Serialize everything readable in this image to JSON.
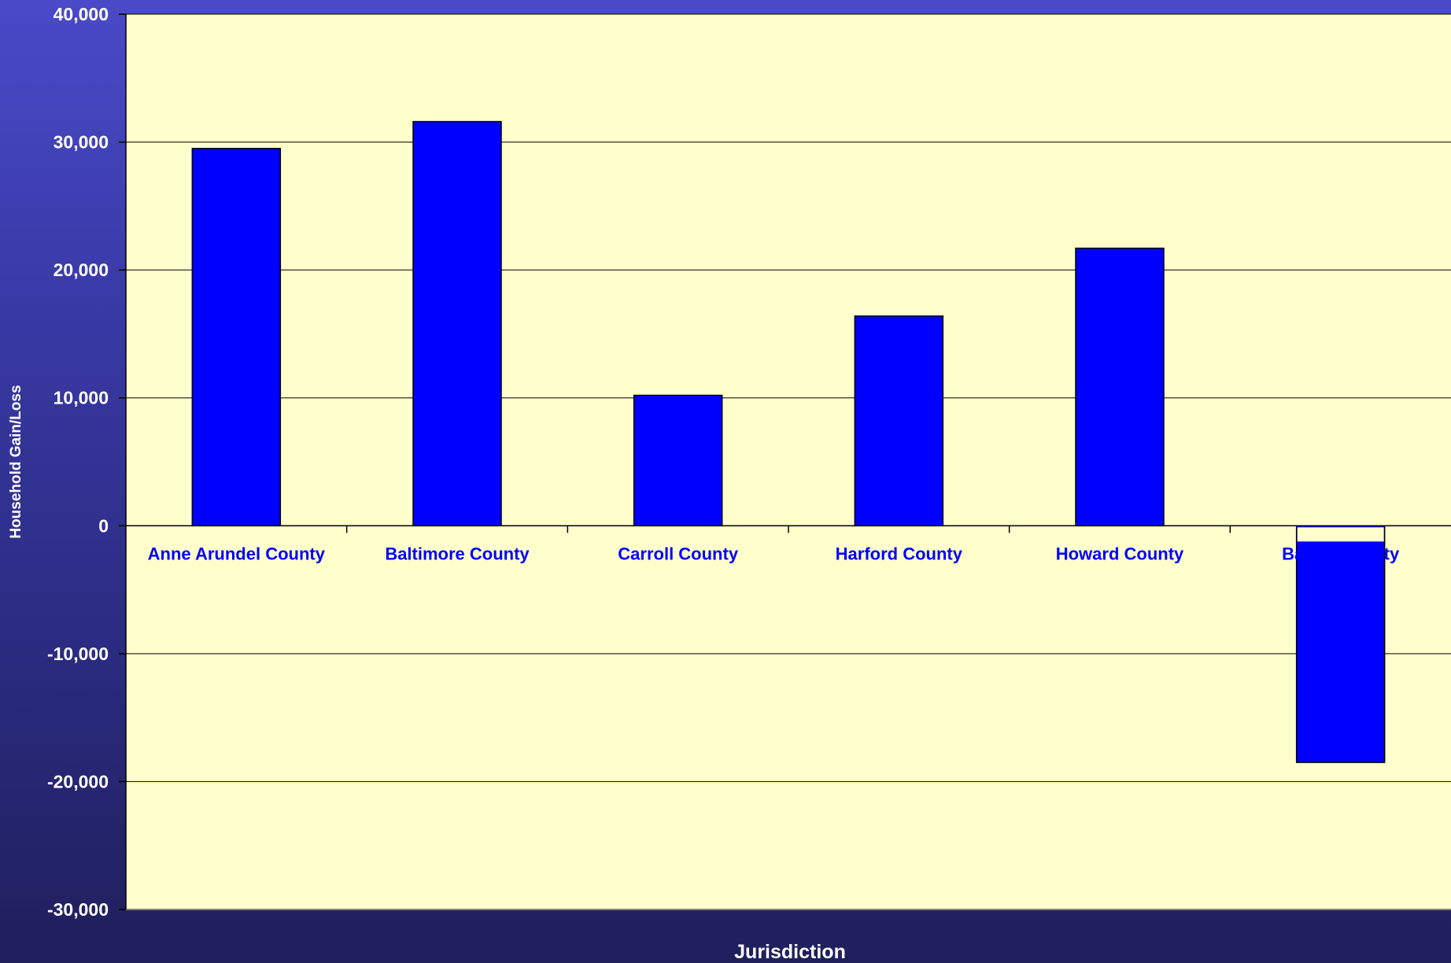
{
  "chart_data": {
    "type": "bar",
    "categories": [
      "Anne Arundel County",
      "Baltimore County",
      "Carroll County",
      "Harford County",
      "Howard County",
      "Baltimore City"
    ],
    "values": [
      29500,
      31600,
      10200,
      16400,
      21700,
      -18500
    ],
    "xlabel": "Jurisdiction",
    "ylabel": "Household Gain/Loss",
    "ylim": [
      -30000,
      40000
    ],
    "yticks": [
      40000,
      30000,
      20000,
      10000,
      0,
      -10000,
      -20000,
      -30000
    ],
    "ytick_labels": [
      "40,000",
      "30,000",
      "20,000",
      "10,000",
      "0",
      "-10,000",
      "-20,000",
      "-30,000"
    ],
    "grid": true,
    "legend": "none",
    "colors": {
      "bar": "#0000ff",
      "plot_background": "#ffffcc",
      "category_label": "#0000ff",
      "axis_text": "#ffffff"
    }
  }
}
